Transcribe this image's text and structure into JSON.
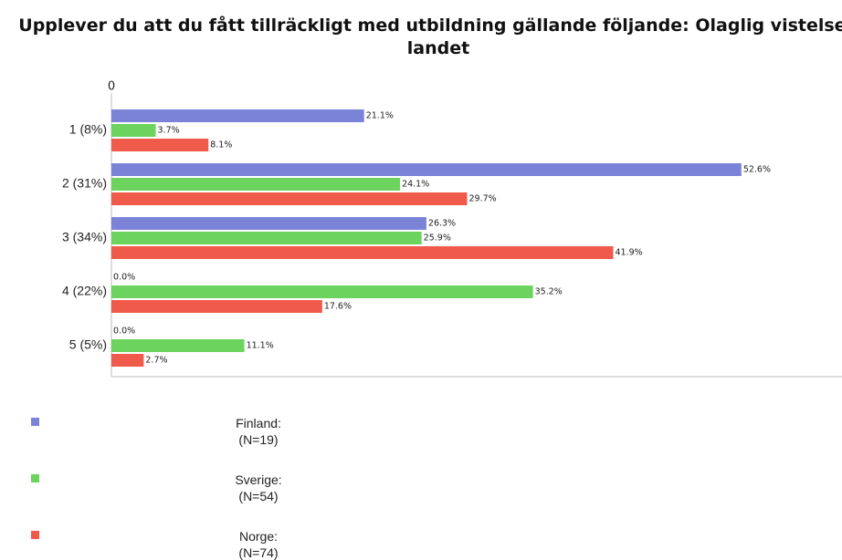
{
  "chart_data": {
    "type": "hbar",
    "title": "Upplever du att du fått tillräckligt med utbildning gällande följande: Olaglig vistelse i landet",
    "categories": [
      "1 (8%)",
      "2 (31%)",
      "3 (34%)",
      "4 (22%)",
      "5 (5%)"
    ],
    "series": [
      {
        "name": "Finland:\n(N=19)",
        "color": "#7b83d9",
        "values": [
          21.1,
          52.6,
          26.3,
          0.0,
          0.0
        ],
        "value_labels": [
          "21.1%",
          "52.6%",
          "26.3%",
          "0.0%",
          "0.0%"
        ]
      },
      {
        "name": "Sverige:\n(N=54)",
        "color": "#6dd35f",
        "values": [
          3.7,
          24.1,
          25.9,
          35.2,
          11.1
        ],
        "value_labels": [
          "3.7%",
          "24.1%",
          "25.9%",
          "35.2%",
          "11.1%"
        ]
      },
      {
        "name": "Norge:\n(N=74)",
        "color": "#f05a4a",
        "values": [
          8.1,
          29.7,
          41.9,
          17.6,
          2.7
        ],
        "value_labels": [
          "8.1%",
          "29.7%",
          "41.9%",
          "17.6%",
          "2.7%"
        ]
      }
    ],
    "xlim": [
      0,
      61
    ],
    "xticks": [
      0
    ]
  }
}
